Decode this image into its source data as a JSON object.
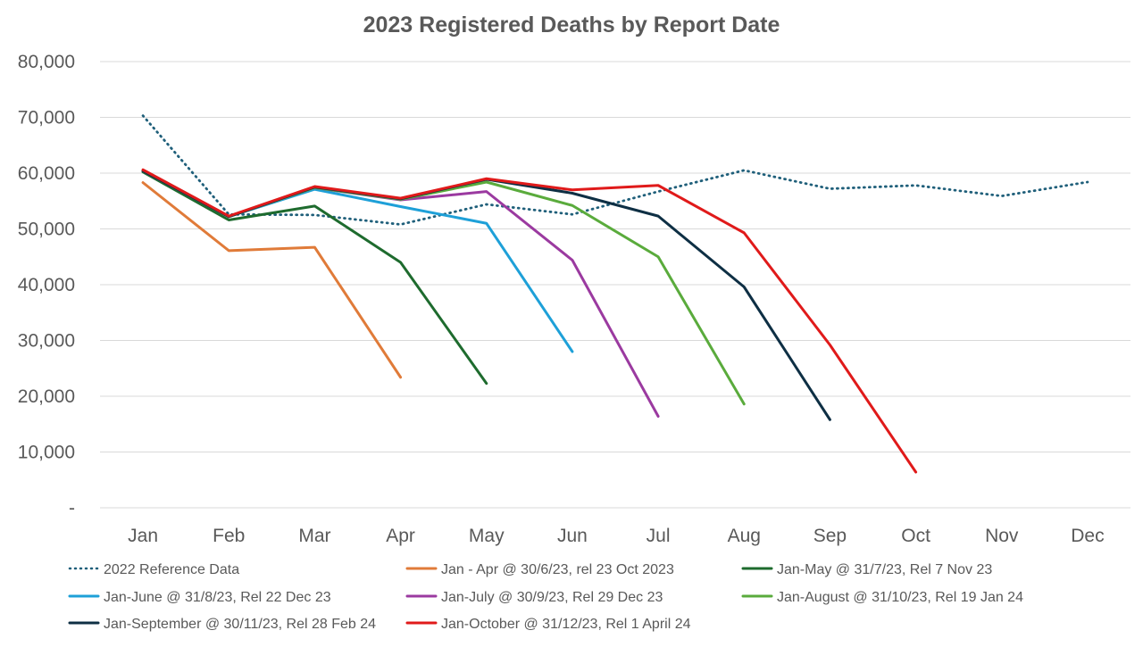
{
  "chart_data": {
    "type": "line",
    "title": "2023 Registered Deaths by Report Date",
    "xlabel": "",
    "ylabel": "",
    "categories": [
      "Jan",
      "Feb",
      "Mar",
      "Apr",
      "May",
      "Jun",
      "Jul",
      "Aug",
      "Sep",
      "Oct",
      "Nov",
      "Dec"
    ],
    "ylim": [
      0,
      80000
    ],
    "yticks": [
      0,
      10000,
      20000,
      30000,
      40000,
      50000,
      60000,
      70000,
      80000
    ],
    "ytick_labels": [
      "-",
      "10,000",
      "20,000",
      "30,000",
      "40,000",
      "50,000",
      "60,000",
      "70,000",
      "80,000"
    ],
    "grid": true,
    "legend_position": "bottom",
    "series": [
      {
        "name": "2022 Reference Data",
        "color": "#1f5f7a",
        "dashed": true,
        "values": [
          70300,
          52600,
          52500,
          50800,
          54400,
          52600,
          56700,
          60500,
          57200,
          57800,
          55900,
          58400
        ]
      },
      {
        "name": "Jan - Apr @ 30/6/23, rel 23 Oct 2023",
        "color": "#e07b39",
        "dashed": false,
        "values": [
          58300,
          46100,
          46700,
          23400,
          null,
          null,
          null,
          null,
          null,
          null,
          null,
          null
        ]
      },
      {
        "name": "Jan-May @ 31/7/23, Rel 7 Nov 23",
        "color": "#1e6b2e",
        "dashed": false,
        "values": [
          60200,
          51600,
          54100,
          44000,
          22300,
          null,
          null,
          null,
          null,
          null,
          null,
          null
        ]
      },
      {
        "name": "Jan-June @ 31/8/23, Rel 22 Dec 23",
        "color": "#1ea0d8",
        "dashed": false,
        "values": [
          60400,
          52200,
          57100,
          54000,
          51000,
          28000,
          null,
          null,
          null,
          null,
          null,
          null
        ]
      },
      {
        "name": "Jan-July @ 30/9/23, Rel 29 Dec 23",
        "color": "#9b3aa0",
        "dashed": false,
        "values": [
          60400,
          52200,
          57400,
          55200,
          56700,
          44400,
          16400,
          null,
          null,
          null,
          null,
          null
        ]
      },
      {
        "name": "Jan-August @ 31/10/23, Rel 19 Jan 24",
        "color": "#5aab3c",
        "dashed": false,
        "values": [
          60400,
          52200,
          57400,
          55300,
          58400,
          54200,
          45000,
          18600,
          null,
          null,
          null,
          null
        ]
      },
      {
        "name": "Jan-September @ 30/11/23, Rel 28 Feb 24",
        "color": "#0e2f44",
        "dashed": false,
        "values": [
          60400,
          52200,
          57500,
          55400,
          58900,
          56400,
          52300,
          39600,
          15800,
          null,
          null,
          null
        ]
      },
      {
        "name": "Jan-October @ 31/12/23, Rel 1 April 24",
        "color": "#e01a1a",
        "dashed": false,
        "values": [
          60600,
          52300,
          57600,
          55500,
          59000,
          57000,
          57800,
          49300,
          29200,
          6400,
          null,
          null
        ]
      }
    ]
  }
}
